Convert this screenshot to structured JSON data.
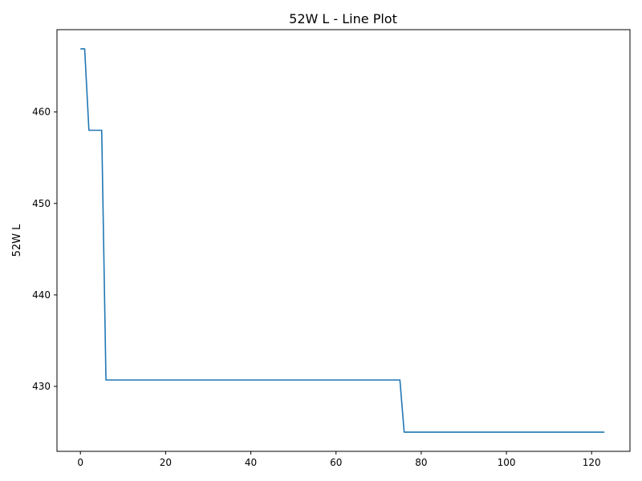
{
  "chart_data": {
    "type": "line",
    "title": "52W L  - Line Plot",
    "xlabel": "",
    "ylabel": "52W L",
    "xlim": [
      -5.5,
      129
    ],
    "ylim": [
      422.9,
      469.0
    ],
    "xticks": [
      0,
      20,
      40,
      60,
      80,
      100,
      120
    ],
    "yticks": [
      430,
      440,
      450,
      460
    ],
    "grid": false,
    "series": [
      {
        "color": "#1f77b4",
        "points": [
          [
            0,
            466.9
          ],
          [
            1,
            466.9
          ],
          [
            2,
            458.0
          ],
          [
            3,
            458.0
          ],
          [
            4,
            458.0
          ],
          [
            5,
            458.0
          ],
          [
            6,
            430.7
          ],
          [
            75,
            430.7
          ],
          [
            76,
            425.0
          ],
          [
            123,
            425.0
          ]
        ]
      }
    ]
  }
}
